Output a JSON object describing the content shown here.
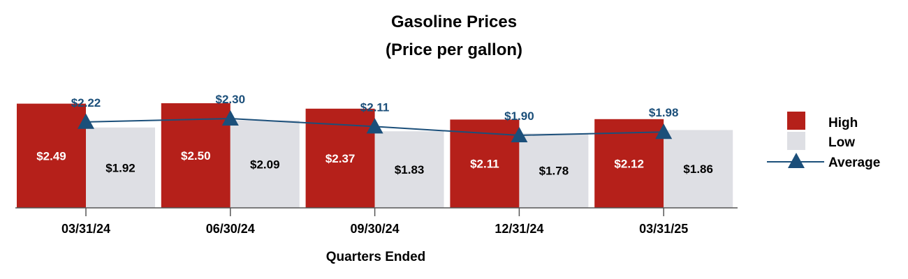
{
  "chart_data": {
    "type": "bar",
    "title": "Gasoline Prices",
    "subtitle": "(Price per gallon)",
    "xlabel": "Quarters Ended",
    "ylabel": "",
    "categories": [
      "03/31/24",
      "06/30/24",
      "09/30/24",
      "12/31/24",
      "03/31/25"
    ],
    "series": [
      {
        "name": "High",
        "kind": "bar",
        "color": "#b5201a",
        "label_color": "#ffffff",
        "values": [
          2.49,
          2.5,
          2.37,
          2.11,
          2.12
        ],
        "labels": [
          "$2.49",
          "$2.50",
          "$2.37",
          "$2.11",
          "$2.12"
        ]
      },
      {
        "name": "Low",
        "kind": "bar",
        "color": "#dedfe4",
        "label_color": "#000000",
        "values": [
          1.92,
          2.09,
          1.83,
          1.78,
          1.86
        ],
        "labels": [
          "$1.92",
          "$2.09",
          "$1.83",
          "$1.78",
          "$1.86"
        ]
      },
      {
        "name": "Average",
        "kind": "line",
        "color": "#1b4f7a",
        "marker": "triangle",
        "values": [
          2.22,
          2.3,
          2.11,
          1.9,
          1.98
        ],
        "labels": [
          "$2.22",
          "$2.30",
          "$2.11",
          "$1.90",
          "$1.98"
        ]
      }
    ],
    "ylim": [
      0,
      2.6
    ],
    "grid": false,
    "legend_position": "right"
  }
}
